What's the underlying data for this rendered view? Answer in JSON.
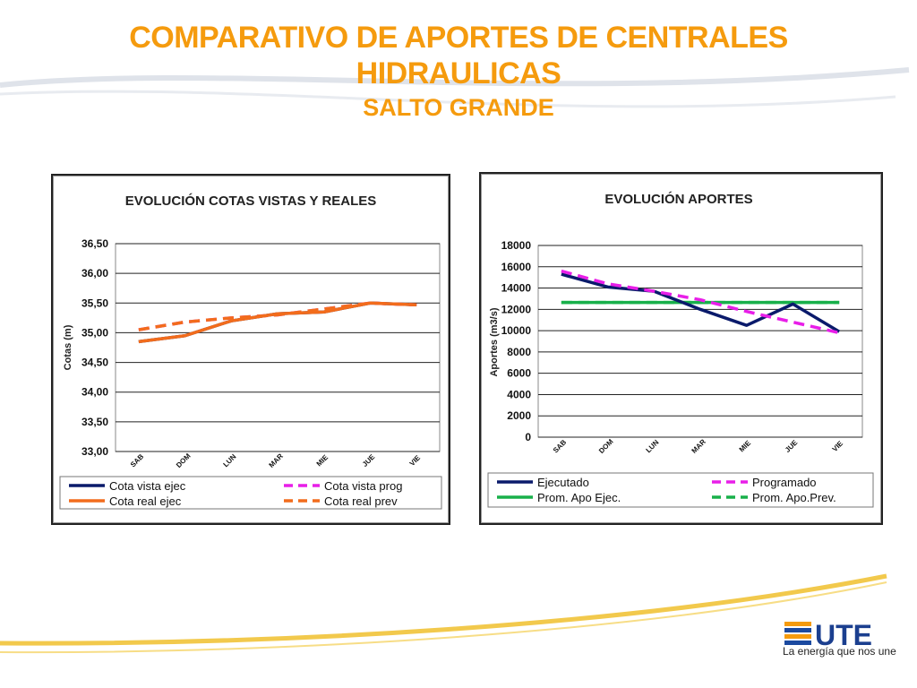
{
  "header": {
    "title_line1": "COMPARATIVO DE APORTES DE CENTRALES",
    "title_line2": "HIDRAULICAS",
    "subtitle": "SALTO GRANDE"
  },
  "brand": {
    "logo_text": "UTE",
    "tagline": "La energía que nos une",
    "accent_color": "#f59b0e"
  },
  "chart_data": [
    {
      "type": "line",
      "title": "EVOLUCIÓN  COTAS VISTAS Y REALES",
      "xlabel": "",
      "ylabel": "Cotas (m)",
      "categories": [
        "SAB",
        "DOM",
        "LUN",
        "MAR",
        "MIE",
        "JUE",
        "VIE"
      ],
      "ylim": [
        33.0,
        36.5
      ],
      "yticks": [
        "33,00",
        "33,50",
        "34,00",
        "34,50",
        "35,00",
        "35,50",
        "36,00",
        "36,50"
      ],
      "grid": true,
      "legend_position": "bottom",
      "series": [
        {
          "name": "Cota vista ejec",
          "color": "#0a1a6b",
          "dash": false,
          "values": [
            34.85,
            34.95,
            35.2,
            35.32,
            35.35,
            35.5,
            35.47
          ]
        },
        {
          "name": "Cota vista prog",
          "color": "#e81ee8",
          "dash": true,
          "values": [
            35.05,
            35.18,
            35.25,
            35.3,
            35.4,
            35.5,
            35.47
          ]
        },
        {
          "name": "Cota real ejec",
          "color": "#f26c1c",
          "dash": false,
          "values": [
            34.85,
            34.95,
            35.2,
            35.32,
            35.35,
            35.5,
            35.47
          ]
        },
        {
          "name": "Cota real prev",
          "color": "#f26c1c",
          "dash": true,
          "values": [
            35.05,
            35.18,
            35.25,
            35.3,
            35.4,
            35.5,
            35.47
          ]
        }
      ]
    },
    {
      "type": "line",
      "title": "EVOLUCIÓN  APORTES",
      "xlabel": "",
      "ylabel": "Aportes (m3/s)",
      "categories": [
        "SAB",
        "DOM",
        "LUN",
        "MAR",
        "MIE",
        "JUE",
        "VIE"
      ],
      "ylim": [
        0,
        18000
      ],
      "yticks": [
        "0",
        "2000",
        "4000",
        "6000",
        "8000",
        "10000",
        "12000",
        "14000",
        "16000",
        "18000"
      ],
      "grid": true,
      "legend_position": "bottom",
      "series": [
        {
          "name": "Ejecutado",
          "color": "#0a1a6b",
          "dash": false,
          "values": [
            15300,
            14100,
            13700,
            12000,
            10500,
            12500,
            9900
          ]
        },
        {
          "name": "Programado",
          "color": "#e81ee8",
          "dash": true,
          "values": [
            15600,
            14400,
            13700,
            12900,
            11800,
            10800,
            9800
          ]
        },
        {
          "name": "Prom. Apo Ejec.",
          "color": "#18b04a",
          "dash": false,
          "values": [
            12650,
            12650,
            12650,
            12650,
            12650,
            12650,
            12650
          ]
        },
        {
          "name": "Prom. Apo.Prev.",
          "color": "#18b04a",
          "dash": true,
          "values": [
            12650,
            12650,
            12650,
            12650,
            12650,
            12650,
            12650
          ]
        }
      ]
    }
  ]
}
